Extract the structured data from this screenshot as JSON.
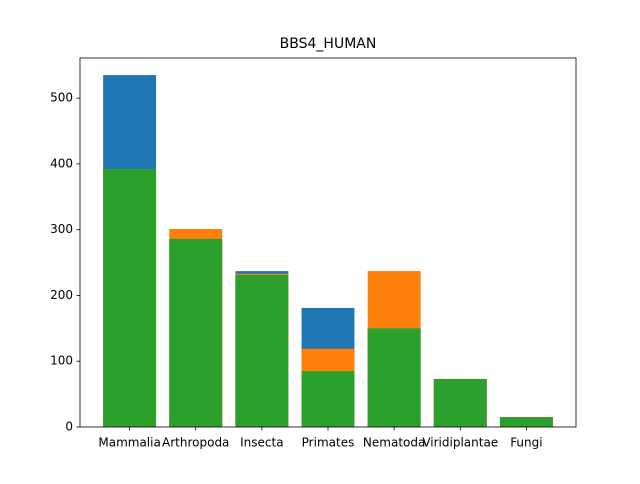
{
  "chart_data": {
    "type": "bar",
    "title": "BBS4_HUMAN",
    "categories": [
      "Mammalia",
      "Arthropoda",
      "Insecta",
      "Primates",
      "Nematoda",
      "Viridiplantae",
      "Fungi"
    ],
    "series": [
      {
        "color": "#1f77b4",
        "values": [
          535,
          286,
          237,
          181,
          150,
          73,
          15
        ]
      },
      {
        "color": "#ff7f0e",
        "values": [
          392,
          301,
          233,
          119,
          237,
          73,
          15
        ]
      },
      {
        "color": "#2ca02c",
        "values": [
          392,
          286,
          231,
          85,
          150,
          73,
          15
        ]
      }
    ],
    "ylim": [
      0,
      561
    ],
    "yticks": [
      0,
      100,
      200,
      300,
      400,
      500
    ],
    "grid": false
  }
}
